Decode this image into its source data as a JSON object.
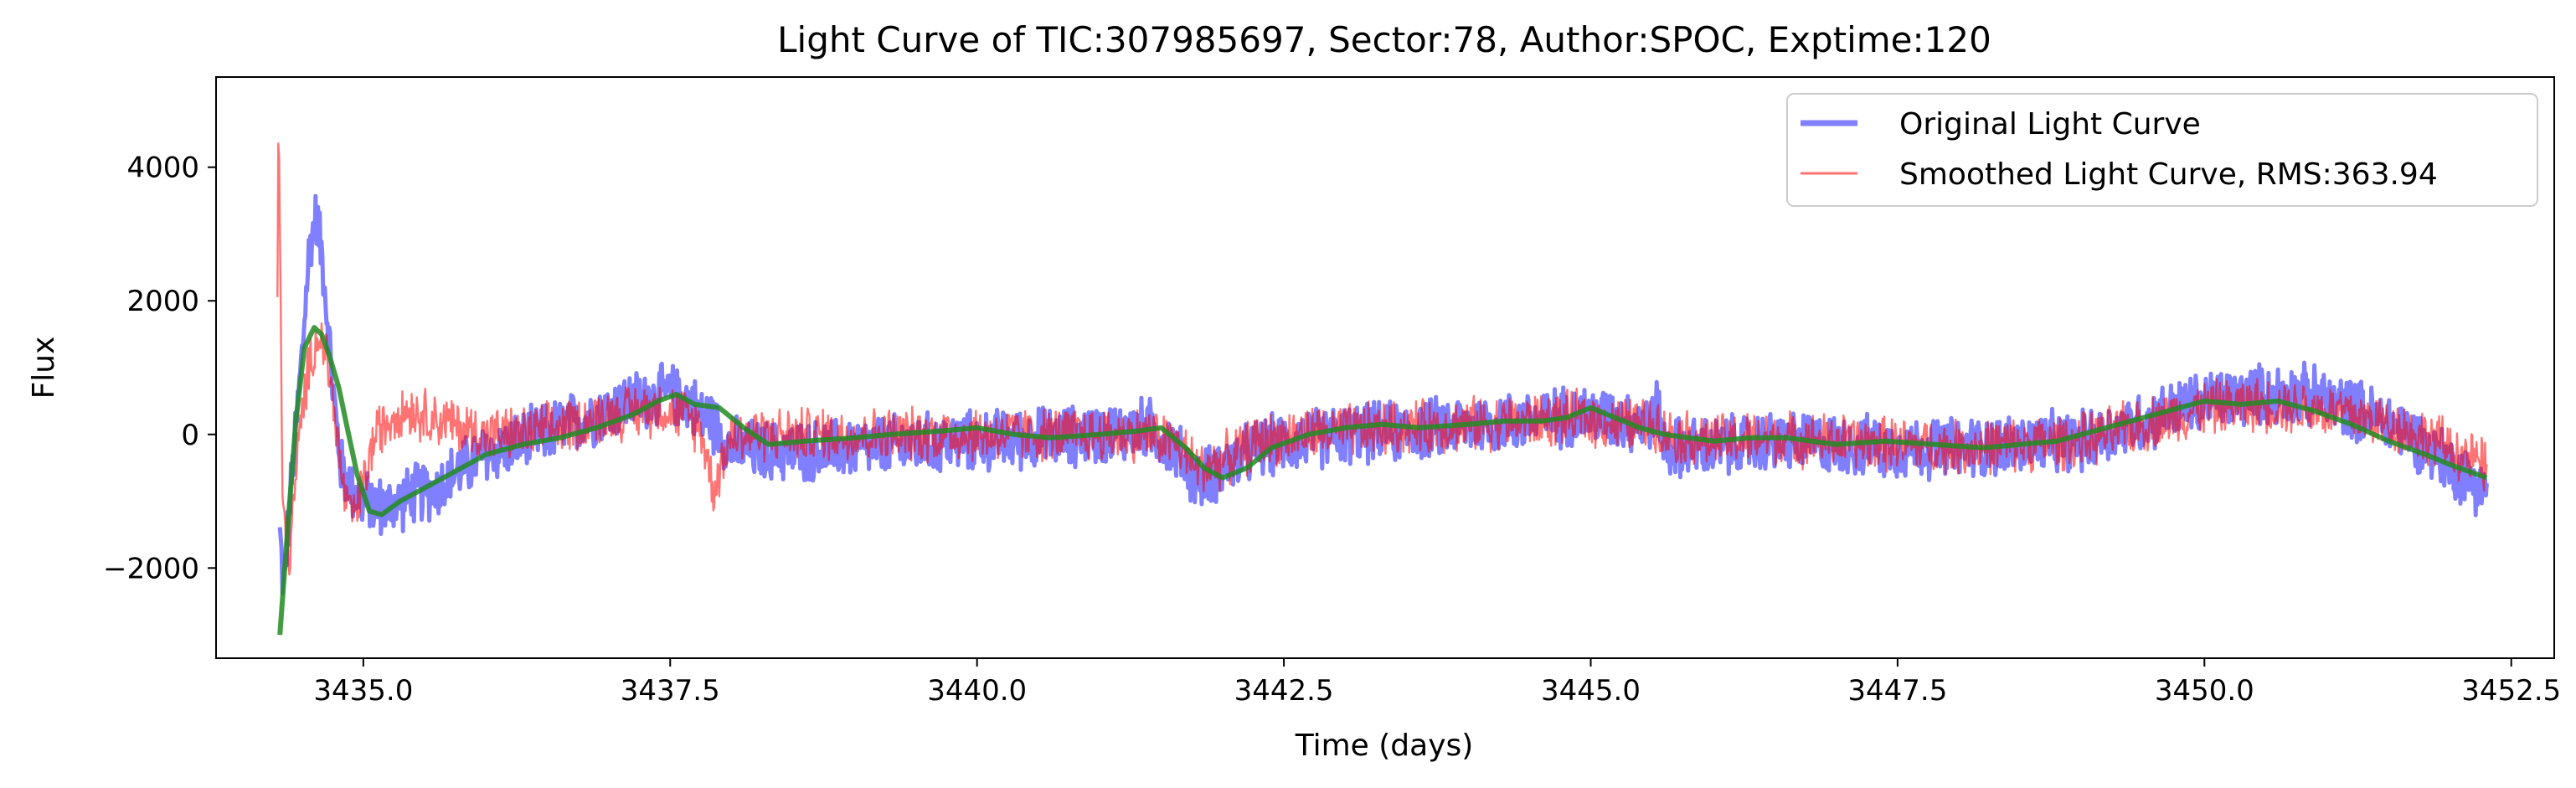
{
  "chart_data": {
    "type": "line",
    "title": "Light Curve of TIC:307985697, Sector:78, Author:SPOC, Exptime:120",
    "xlabel": "Time (days)",
    "ylabel": "Flux",
    "xlim": [
      3433.8,
      3452.85
    ],
    "ylim": [
      -3350,
      5350
    ],
    "xticks": [
      3435.0,
      3437.5,
      3440.0,
      3442.5,
      3445.0,
      3447.5,
      3450.0,
      3452.5
    ],
    "xtick_labels": [
      "3435.0",
      "3437.5",
      "3440.0",
      "3442.5",
      "3445.0",
      "3447.5",
      "3450.0",
      "3452.5"
    ],
    "yticks": [
      -2000,
      0,
      2000,
      4000
    ],
    "ytick_labels": [
      "−2000",
      "0",
      "2000",
      "4000"
    ],
    "grid": false,
    "legend_position": "upper right",
    "series": [
      {
        "name": "Original Light Curve",
        "color": "#0000ff",
        "opacity": 0.5,
        "style": "thick",
        "x": [
          3434.32,
          3434.35,
          3434.42,
          3434.5,
          3434.56,
          3434.62,
          3434.68,
          3434.75,
          3434.82,
          3434.9,
          3435.0,
          3435.2,
          3435.4,
          3435.6,
          3435.8,
          3436.0,
          3436.3,
          3436.6,
          3436.9,
          3437.2,
          3437.5,
          3437.65,
          3437.75,
          3437.82,
          3438.0,
          3438.3,
          3438.6,
          3439.0,
          3439.5,
          3440.0,
          3440.5,
          3441.0,
          3441.4,
          3441.6,
          3441.8,
          3442.0,
          3442.3,
          3442.6,
          3443.0,
          3443.5,
          3444.0,
          3444.5,
          3444.9,
          3445.1,
          3445.3,
          3445.5,
          3445.55,
          3445.6,
          3446.0,
          3446.5,
          3447.0,
          3447.5,
          3448.0,
          3448.5,
          3449.0,
          3449.5,
          3450.0,
          3450.5,
          3450.8,
          3451.2,
          3451.6,
          3451.9,
          3452.1,
          3452.3
        ],
        "y": [
          -1500,
          -2300,
          -600,
          1200,
          2800,
          3300,
          2400,
          700,
          -500,
          -800,
          -1000,
          -1100,
          -900,
          -800,
          -500,
          -300,
          -100,
          100,
          300,
          500,
          600,
          500,
          300,
          250,
          -200,
          -250,
          -250,
          -200,
          -150,
          -100,
          -50,
          0,
          100,
          -200,
          -700,
          -500,
          -200,
          -100,
          0,
          50,
          150,
          200,
          300,
          250,
          200,
          200,
          400,
          -200,
          -200,
          -100,
          -150,
          -200,
          -200,
          -150,
          -100,
          200,
          500,
          600,
          600,
          400,
          100,
          -300,
          -600,
          -800
        ]
      },
      {
        "name": "Smoothed Light Curve, RMS:363.94",
        "color": "#ff0000",
        "opacity": 0.55,
        "style": "thin",
        "x": [
          3434.3,
          3434.31,
          3434.34,
          3434.4,
          3434.46,
          3434.52,
          3434.58,
          3434.64,
          3434.7,
          3434.76,
          3434.82,
          3434.88,
          3434.95,
          3435.1,
          3435.3,
          3435.5,
          3435.8,
          3436.0,
          3436.3,
          3436.6,
          3436.9,
          3437.2,
          3437.45,
          3437.6,
          3437.75,
          3437.85,
          3438.0,
          3438.3,
          3438.6,
          3439.0,
          3439.5,
          3440.0,
          3440.5,
          3441.0,
          3441.4,
          3441.6,
          3441.8,
          3442.0,
          3442.3,
          3442.6,
          3443.0,
          3443.5,
          3444.0,
          3444.5,
          3444.9,
          3445.1,
          3445.3,
          3445.5,
          3445.55,
          3445.6,
          3446.0,
          3446.5,
          3447.0,
          3447.5,
          3448.0,
          3448.5,
          3449.0,
          3449.5,
          3450.0,
          3450.5,
          3450.8,
          3451.2,
          3451.6,
          3451.9,
          3452.1,
          3452.3
        ],
        "y": [
          2000,
          5100,
          -1000,
          -1800,
          -400,
          600,
          1200,
          1500,
          1200,
          400,
          -600,
          -1200,
          -1100,
          0,
          400,
          300,
          100,
          0,
          0,
          100,
          250,
          350,
          400,
          300,
          100,
          -800,
          0,
          0,
          0,
          0,
          0,
          0,
          0,
          0,
          0,
          -100,
          -500,
          -400,
          -100,
          0,
          50,
          100,
          150,
          200,
          250,
          200,
          150,
          150,
          200,
          0,
          -100,
          -50,
          -100,
          -150,
          -200,
          -150,
          -100,
          150,
          400,
          450,
          400,
          300,
          100,
          -100,
          -300,
          -500
        ]
      },
      {
        "name": "",
        "color": "#228b22",
        "opacity": 0.85,
        "style": "medium",
        "x": [
          3434.32,
          3434.38,
          3434.45,
          3434.52,
          3434.6,
          3434.66,
          3434.72,
          3434.8,
          3434.88,
          3434.95,
          3435.05,
          3435.15,
          3435.3,
          3435.5,
          3435.8,
          3436.0,
          3436.3,
          3436.6,
          3436.9,
          3437.2,
          3437.4,
          3437.55,
          3437.7,
          3437.9,
          3438.1,
          3438.3,
          3438.6,
          3439.0,
          3439.3,
          3439.7,
          3440.0,
          3440.3,
          3440.6,
          3441.0,
          3441.3,
          3441.5,
          3441.7,
          3441.85,
          3442.0,
          3442.2,
          3442.4,
          3442.7,
          3443.0,
          3443.3,
          3443.6,
          3444.0,
          3444.3,
          3444.6,
          3444.8,
          3445.0,
          3445.2,
          3445.4,
          3445.6,
          3445.8,
          3446.0,
          3446.3,
          3446.6,
          3447.0,
          3447.4,
          3447.8,
          3448.2,
          3448.5,
          3448.8,
          3449.2,
          3449.6,
          3450.0,
          3450.3,
          3450.6,
          3450.9,
          3451.2,
          3451.5,
          3451.8,
          3452.0,
          3452.3
        ],
        "y": [
          -3000,
          -1500,
          200,
          1300,
          1600,
          1500,
          1200,
          700,
          0,
          -600,
          -1150,
          -1200,
          -1000,
          -800,
          -500,
          -300,
          -150,
          -50,
          100,
          300,
          500,
          600,
          450,
          400,
          100,
          -150,
          -100,
          -50,
          0,
          50,
          100,
          0,
          -50,
          0,
          50,
          100,
          -200,
          -500,
          -650,
          -500,
          -200,
          0,
          100,
          150,
          100,
          150,
          200,
          200,
          250,
          400,
          250,
          100,
          0,
          -50,
          -100,
          -50,
          -50,
          -150,
          -100,
          -150,
          -200,
          -150,
          -100,
          100,
          300,
          500,
          450,
          500,
          350,
          150,
          -100,
          -300,
          -450,
          -650
        ]
      }
    ]
  }
}
